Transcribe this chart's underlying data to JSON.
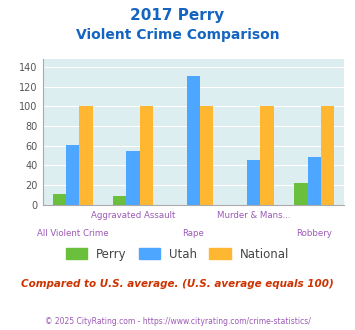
{
  "title_line1": "2017 Perry",
  "title_line2": "Violent Crime Comparison",
  "categories": [
    "All Violent Crime",
    "Aggravated Assault",
    "Rape",
    "Murder & Mans...",
    "Robbery"
  ],
  "row1_labels": {
    "1": "Aggravated Assault",
    "3": "Murder & Mans..."
  },
  "row2_labels": {
    "0": "All Violent Crime",
    "2": "Rape",
    "4": "Robbery"
  },
  "perry_values": [
    11,
    9,
    0,
    0,
    22
  ],
  "utah_values": [
    61,
    55,
    131,
    45,
    49
  ],
  "national_values": [
    100,
    100,
    100,
    100,
    100
  ],
  "perry_color": "#6abf3c",
  "utah_color": "#4da6ff",
  "national_color": "#ffb732",
  "ylim": [
    0,
    148
  ],
  "yticks": [
    0,
    20,
    40,
    60,
    80,
    100,
    120,
    140
  ],
  "bg_color": "#ddeef0",
  "title_color": "#1565c0",
  "xlabel_color": "#9b59b6",
  "legend_labels": [
    "Perry",
    "Utah",
    "National"
  ],
  "footnote": "Compared to U.S. average. (U.S. average equals 100)",
  "copyright": "© 2025 CityRating.com - https://www.cityrating.com/crime-statistics/",
  "footnote_color": "#cc3300",
  "copyright_color": "#9b59b6",
  "bar_width": 0.22
}
